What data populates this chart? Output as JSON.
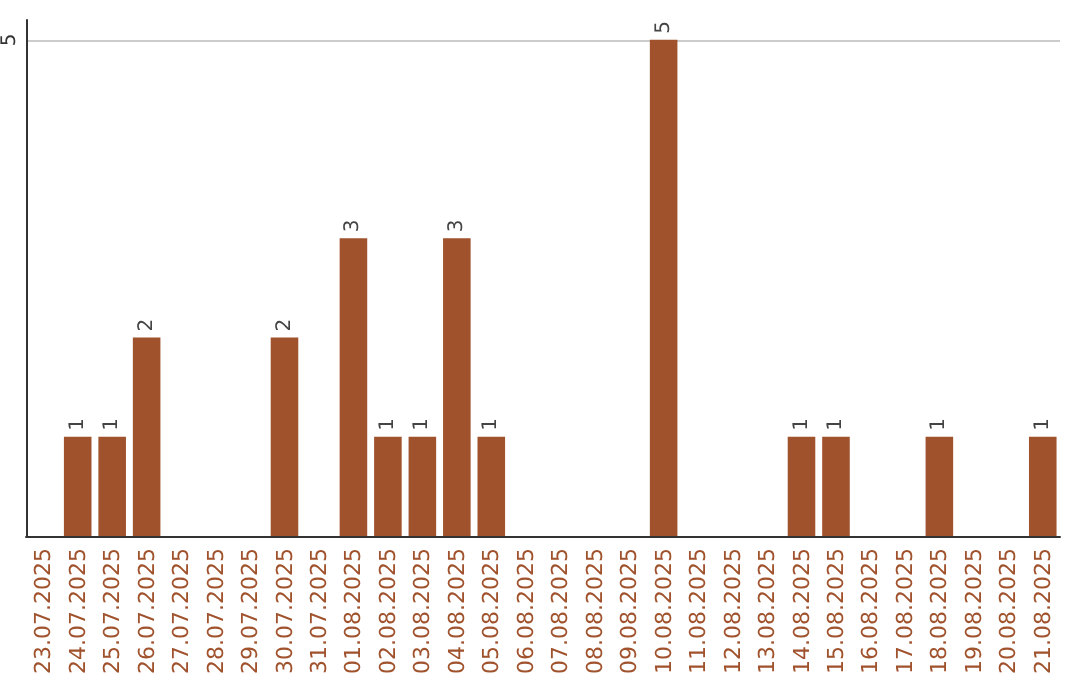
{
  "chart_data": {
    "type": "bar",
    "categories": [
      "23.07.2025",
      "24.07.2025",
      "25.07.2025",
      "26.07.2025",
      "27.07.2025",
      "28.07.2025",
      "29.07.2025",
      "30.07.2025",
      "31.07.2025",
      "01.08.2025",
      "02.08.2025",
      "03.08.2025",
      "04.08.2025",
      "05.08.2025",
      "06.08.2025",
      "07.08.2025",
      "08.08.2025",
      "09.08.2025",
      "10.08.2025",
      "11.08.2025",
      "12.08.2025",
      "13.08.2025",
      "14.08.2025",
      "15.08.2025",
      "16.08.2025",
      "17.08.2025",
      "18.08.2025",
      "19.08.2025",
      "20.08.2025",
      "21.08.2025"
    ],
    "values": [
      0,
      1,
      1,
      2,
      0,
      0,
      0,
      2,
      0,
      3,
      1,
      1,
      3,
      1,
      0,
      0,
      0,
      0,
      5,
      0,
      0,
      0,
      1,
      1,
      0,
      0,
      1,
      0,
      0,
      1
    ],
    "value_labels": [
      null,
      "1",
      "1",
      "2",
      null,
      null,
      null,
      "2",
      null,
      "3",
      "1",
      "1",
      "3",
      "1",
      null,
      null,
      null,
      null,
      "5",
      null,
      null,
      null,
      "1",
      "1",
      null,
      null,
      "1",
      null,
      null,
      "1"
    ],
    "color": "#a0522d",
    "ylim": [
      0,
      5.2
    ],
    "yticks": [
      5
    ],
    "grid": "y"
  }
}
